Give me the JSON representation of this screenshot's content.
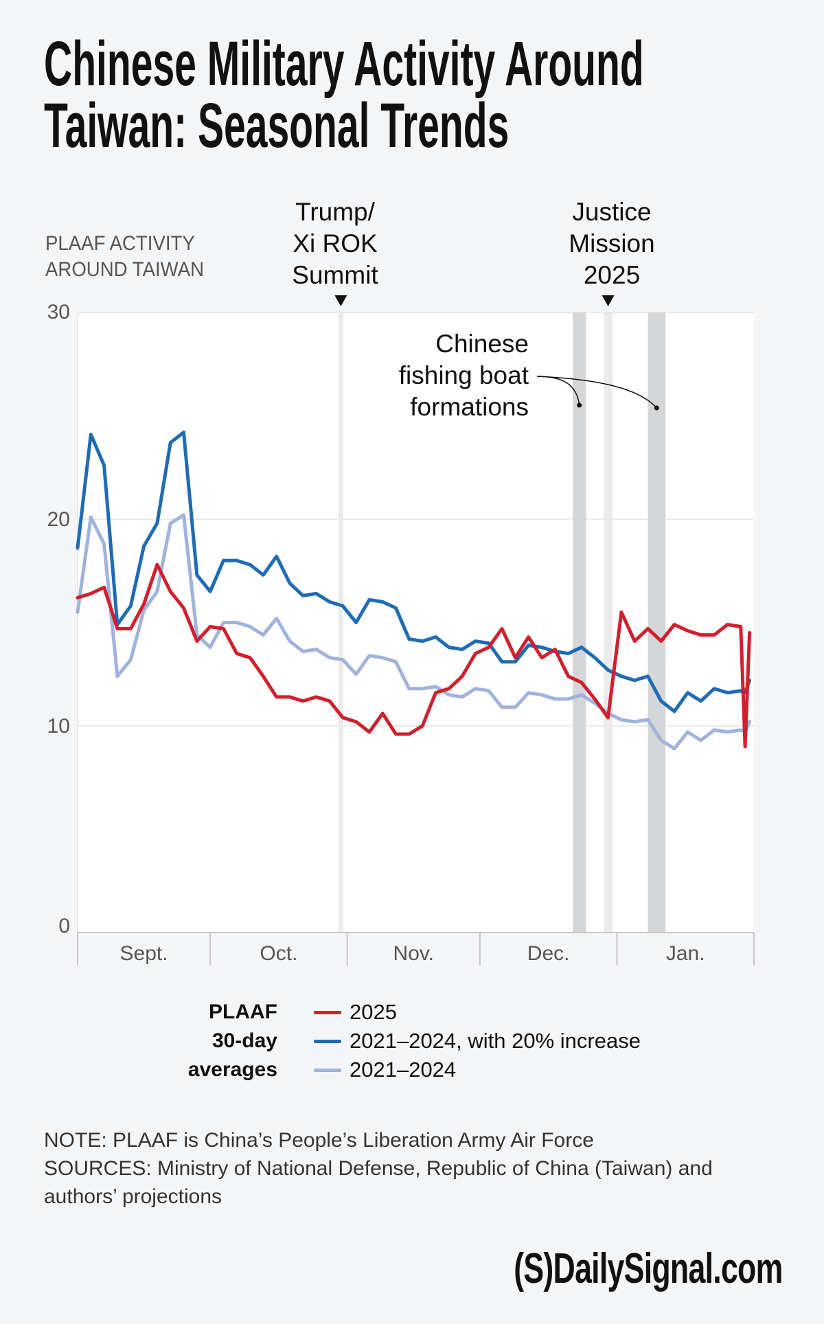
{
  "title": [
    "Chinese Military Activity Around",
    "Taiwan: Seasonal Trends"
  ],
  "chart_data": {
    "type": "line",
    "ylabel": [
      "PLAAF ACTIVITY",
      "AROUND TAIWAN"
    ],
    "ylim": [
      0,
      30
    ],
    "yticks": [
      "0",
      "10",
      "20",
      "30"
    ],
    "xlim": [
      "2025-09-01",
      "2026-02-01"
    ],
    "months": [
      {
        "label": "Sept.",
        "start": "2025-09-01",
        "end": "2025-10-01"
      },
      {
        "label": "Oct.",
        "start": "2025-10-01",
        "end": "2025-11-01"
      },
      {
        "label": "Nov.",
        "start": "2025-11-01",
        "end": "2025-12-01"
      },
      {
        "label": "Dec.",
        "start": "2025-12-01",
        "end": "2026-01-01"
      },
      {
        "label": "Jan.",
        "start": "2026-01-01",
        "end": "2026-02-01"
      }
    ],
    "grid": "horizontal",
    "x": [
      "2025-09-01",
      "2025-09-04",
      "2025-09-07",
      "2025-09-10",
      "2025-09-13",
      "2025-09-16",
      "2025-09-19",
      "2025-09-22",
      "2025-09-25",
      "2025-09-28",
      "2025-10-01",
      "2025-10-04",
      "2025-10-07",
      "2025-10-10",
      "2025-10-13",
      "2025-10-16",
      "2025-10-19",
      "2025-10-22",
      "2025-10-25",
      "2025-10-28",
      "2025-10-31",
      "2025-11-03",
      "2025-11-06",
      "2025-11-09",
      "2025-11-12",
      "2025-11-15",
      "2025-11-18",
      "2025-11-21",
      "2025-11-24",
      "2025-11-27",
      "2025-11-30",
      "2025-12-03",
      "2025-12-06",
      "2025-12-09",
      "2025-12-12",
      "2025-12-15",
      "2025-12-18",
      "2025-12-21",
      "2025-12-24",
      "2025-12-27",
      "2025-12-30",
      "2026-01-02",
      "2026-01-05",
      "2026-01-08",
      "2026-01-11",
      "2026-01-14",
      "2026-01-17",
      "2026-01-20",
      "2026-01-23",
      "2026-01-26",
      "2026-01-29",
      "2026-01-30",
      "2026-01-31"
    ],
    "series": [
      {
        "name": "2025",
        "color": "#d0202e",
        "values": [
          16.2,
          16.4,
          16.7,
          14.7,
          14.7,
          15.9,
          17.8,
          16.5,
          15.7,
          14.1,
          14.8,
          14.7,
          13.5,
          13.3,
          12.4,
          11.4,
          11.4,
          11.2,
          11.4,
          11.2,
          10.4,
          10.2,
          9.7,
          10.6,
          9.6,
          9.6,
          10.0,
          11.6,
          11.8,
          12.4,
          13.5,
          13.8,
          14.7,
          13.3,
          14.3,
          13.3,
          13.7,
          12.4,
          12.1,
          11.3,
          10.4,
          15.5,
          14.1,
          14.7,
          14.1,
          14.9,
          14.6,
          14.4,
          14.4,
          14.9,
          14.8,
          9.0,
          14.5
        ]
      },
      {
        "name": "2021–2024, with 20% increase",
        "color": "#1f6bb5",
        "values": [
          18.6,
          24.1,
          22.6,
          14.9,
          15.8,
          18.7,
          19.8,
          23.7,
          24.2,
          17.3,
          16.5,
          18.0,
          18.0,
          17.8,
          17.3,
          18.2,
          16.9,
          16.3,
          16.4,
          16.0,
          15.8,
          15.0,
          16.1,
          16.0,
          15.7,
          14.2,
          14.1,
          14.3,
          13.8,
          13.7,
          14.1,
          14.0,
          13.1,
          13.1,
          13.9,
          13.8,
          13.6,
          13.5,
          13.8,
          13.3,
          12.7,
          12.4,
          12.2,
          12.4,
          11.2,
          10.7,
          11.6,
          11.2,
          11.8,
          11.6,
          11.7,
          11.6,
          12.2
        ]
      },
      {
        "name": "2021–2024",
        "color": "#9fb3dc",
        "values": [
          15.5,
          20.1,
          18.8,
          12.4,
          13.2,
          15.6,
          16.5,
          19.8,
          20.2,
          14.4,
          13.8,
          15.0,
          15.0,
          14.8,
          14.4,
          15.2,
          14.1,
          13.6,
          13.7,
          13.3,
          13.2,
          12.5,
          13.4,
          13.3,
          13.1,
          11.8,
          11.8,
          11.9,
          11.5,
          11.4,
          11.8,
          11.7,
          10.9,
          10.9,
          11.6,
          11.5,
          11.3,
          11.3,
          11.5,
          11.1,
          10.6,
          10.3,
          10.2,
          10.3,
          9.3,
          8.9,
          9.7,
          9.3,
          9.8,
          9.7,
          9.8,
          9.7,
          10.2
        ]
      }
    ],
    "events": [
      {
        "label": [
          "Trump/",
          "Xi ROK",
          "Summit"
        ],
        "start": "2025-10-30",
        "end": "2025-10-31",
        "color": "#ebebed"
      },
      {
        "label": [
          "Justice",
          "Mission",
          "2025"
        ],
        "start": "2025-12-29",
        "end": "2025-12-31",
        "color": "#ebebed"
      }
    ],
    "bands": {
      "label": [
        "Chinese",
        "fishing boat",
        "formations"
      ],
      "color": "#d5d6d8",
      "ranges": [
        [
          "2025-12-22",
          "2025-12-25"
        ],
        [
          "2026-01-08",
          "2026-01-12"
        ]
      ]
    },
    "legend": {
      "title": [
        "PLAAF",
        "30-day",
        "averages"
      ],
      "placement": "bottom"
    }
  },
  "note": "NOTE: PLAAF is China’s People’s Liberation Army Air Force",
  "sources": "SOURCES: Ministry of National Defense, Republic of China (Taiwan) and authors’ projections",
  "logo": "(S)DailySignal.com"
}
